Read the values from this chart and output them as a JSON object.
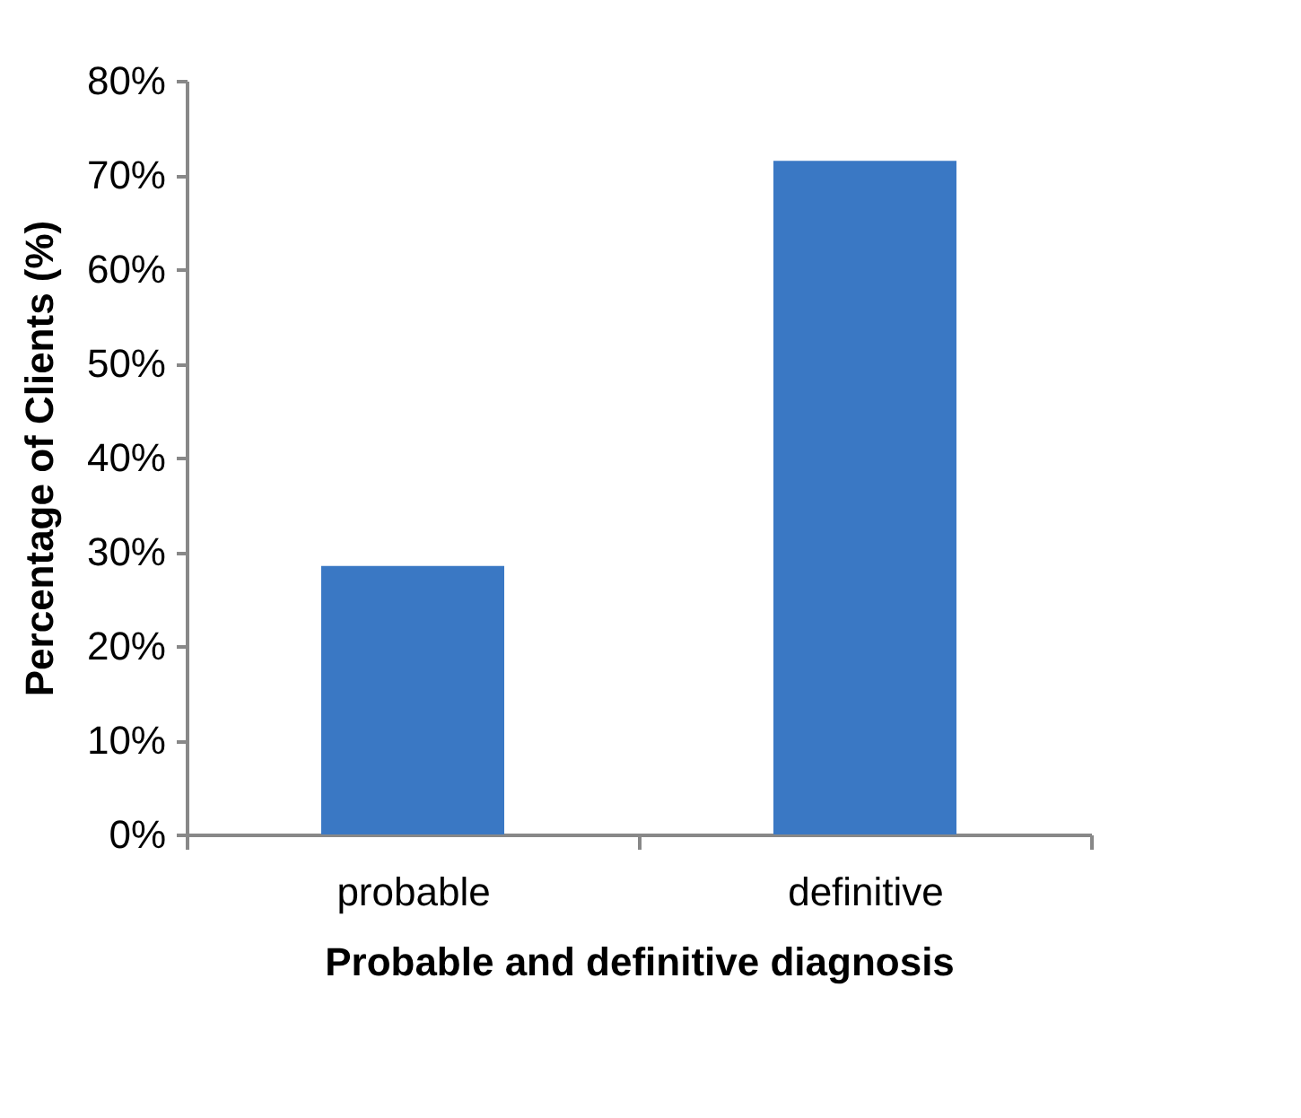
{
  "chart_data": {
    "type": "bar",
    "xlabel": "Probable and definitive diagnosis",
    "ylabel": "Percentage of Clients  (%)",
    "categories": [
      "probable",
      "definitive"
    ],
    "values": [
      28.5,
      71.5
    ],
    "color": "#3a78c4",
    "ylim": [
      0,
      80
    ],
    "yticks": [
      {
        "value": 0,
        "label": "0%"
      },
      {
        "value": 10,
        "label": "10%"
      },
      {
        "value": 20,
        "label": "20%"
      },
      {
        "value": 30,
        "label": "30%"
      },
      {
        "value": 40,
        "label": "40%"
      },
      {
        "value": 50,
        "label": "50%"
      },
      {
        "value": 60,
        "label": "60%"
      },
      {
        "value": 70,
        "label": "70%"
      },
      {
        "value": 80,
        "label": "80%"
      }
    ],
    "grid": false
  }
}
